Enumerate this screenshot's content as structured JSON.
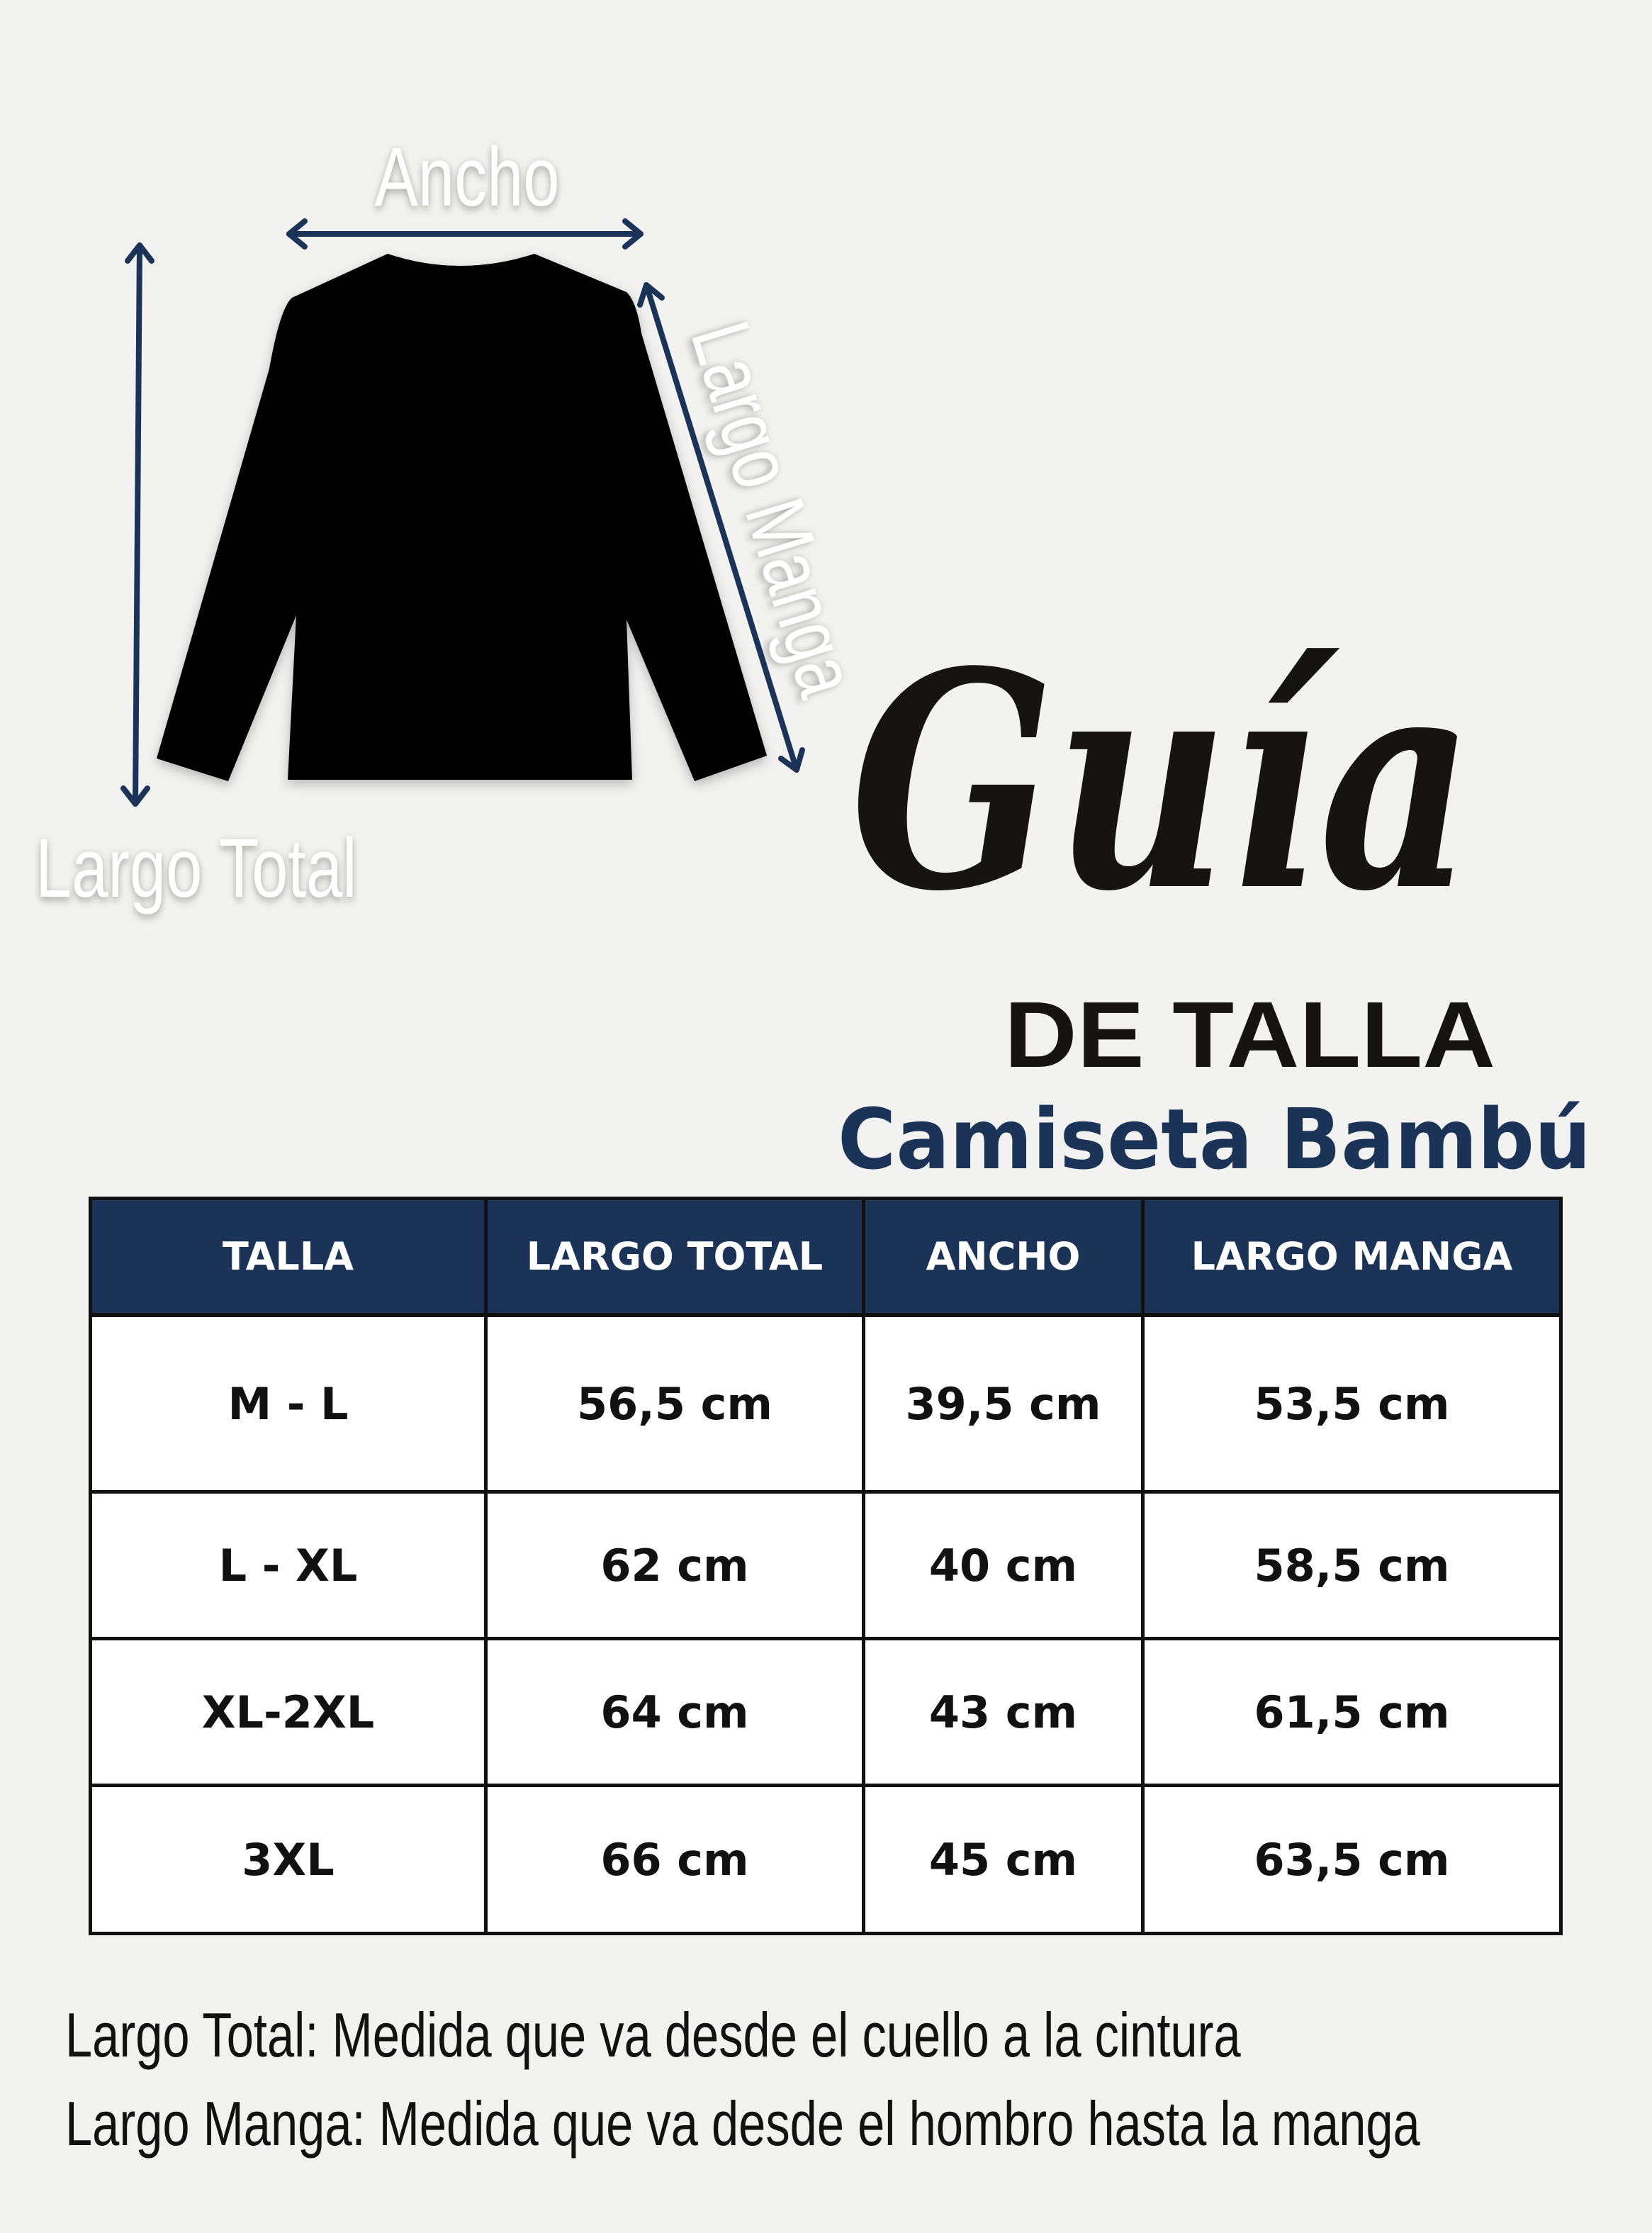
{
  "diagram": {
    "labels": {
      "width": "Ancho",
      "total_length": "Largo Total",
      "sleeve_length": "Largo Manga"
    },
    "arrow_color": "#1c3358",
    "shirt_color": "#000000"
  },
  "title": {
    "script": "Guía",
    "sub": "DE TALLA",
    "product": "Camiseta Bambú",
    "product_color": "#1c3358"
  },
  "table": {
    "header_color": "#1c3358",
    "headers": [
      "TALLA",
      "LARGO TOTAL",
      "ANCHO",
      "LARGO MANGA"
    ],
    "rows": [
      [
        "M - L",
        "56,5 cm",
        "39,5 cm",
        "53,5 cm"
      ],
      [
        "L - XL",
        "62 cm",
        "40 cm",
        "58,5 cm"
      ],
      [
        "XL-2XL",
        "64 cm",
        "43 cm",
        "61,5 cm"
      ],
      [
        "3XL",
        "66 cm",
        "45 cm",
        "63,5 cm"
      ]
    ]
  },
  "notes": [
    "Largo Total: Medida que va desde el cuello a la cintura",
    "Largo Manga: Medida que va desde el hombro hasta la manga"
  ]
}
